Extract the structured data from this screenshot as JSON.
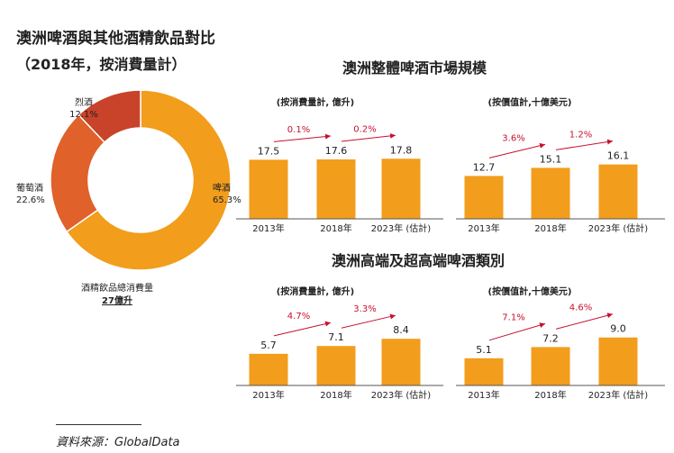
{
  "titles": {
    "left": "澳洲啤酒與其他酒精飲品對比",
    "left_sub": "（2018年，按消費量計）",
    "market": "澳洲整體啤酒市場規模",
    "premium": "澳洲高端及超高端啤酒類別"
  },
  "donut_center": {
    "caption": "酒精飲品總消費量",
    "total": "27億升"
  },
  "source": "資料來源：GlobalData",
  "colors": {
    "beer": "#F29D1C",
    "wine": "#E0612A",
    "spirits": "#C8432A",
    "bar": "#F29D1C",
    "growth_arrow": "#C8102E"
  },
  "chart_data": [
    {
      "type": "pie",
      "title": "",
      "labels": [
        "啤酒",
        "葡萄酒",
        "烈酒"
      ],
      "values": [
        65.3,
        22.6,
        12.1
      ],
      "value_labels": [
        "65.3%",
        "22.6%",
        "12.1%"
      ],
      "donut": true
    },
    {
      "type": "bar",
      "subtitle": "(按消費量計, 億升)",
      "categories": [
        "2013年",
        "2018年",
        "2023年 (估計)"
      ],
      "values": [
        17.5,
        17.6,
        17.8
      ],
      "value_labels": [
        "17.5",
        "17.6",
        "17.8"
      ],
      "growth": [
        "0.1%",
        "0.2%"
      ],
      "ylim": [
        0,
        20
      ]
    },
    {
      "type": "bar",
      "subtitle": "(按價值計,十億美元)",
      "categories": [
        "2013年",
        "2018年",
        "2023年 (估計)"
      ],
      "values": [
        12.7,
        15.1,
        16.1
      ],
      "value_labels": [
        "12.7",
        "15.1",
        "16.1"
      ],
      "growth": [
        "3.6%",
        "1.2%"
      ],
      "ylim": [
        0,
        20
      ]
    },
    {
      "type": "bar",
      "subtitle": "(按消費量計, 億升)",
      "categories": [
        "2013年",
        "2018年",
        "2023年 (估計)"
      ],
      "values": [
        5.7,
        7.1,
        8.4
      ],
      "value_labels": [
        "5.7",
        "7.1",
        "8.4"
      ],
      "growth": [
        "4.7%",
        "3.3%"
      ],
      "ylim": [
        0,
        12
      ]
    },
    {
      "type": "bar",
      "subtitle": "(按價值計,十億美元)",
      "categories": [
        "2013年",
        "2018年",
        "2023年 (估計)"
      ],
      "values": [
        5.1,
        7.2,
        9.0
      ],
      "value_labels": [
        "5.1",
        "7.2",
        "9.0"
      ],
      "growth": [
        "7.1%",
        "4.6%"
      ],
      "ylim": [
        0,
        12.5
      ]
    }
  ]
}
